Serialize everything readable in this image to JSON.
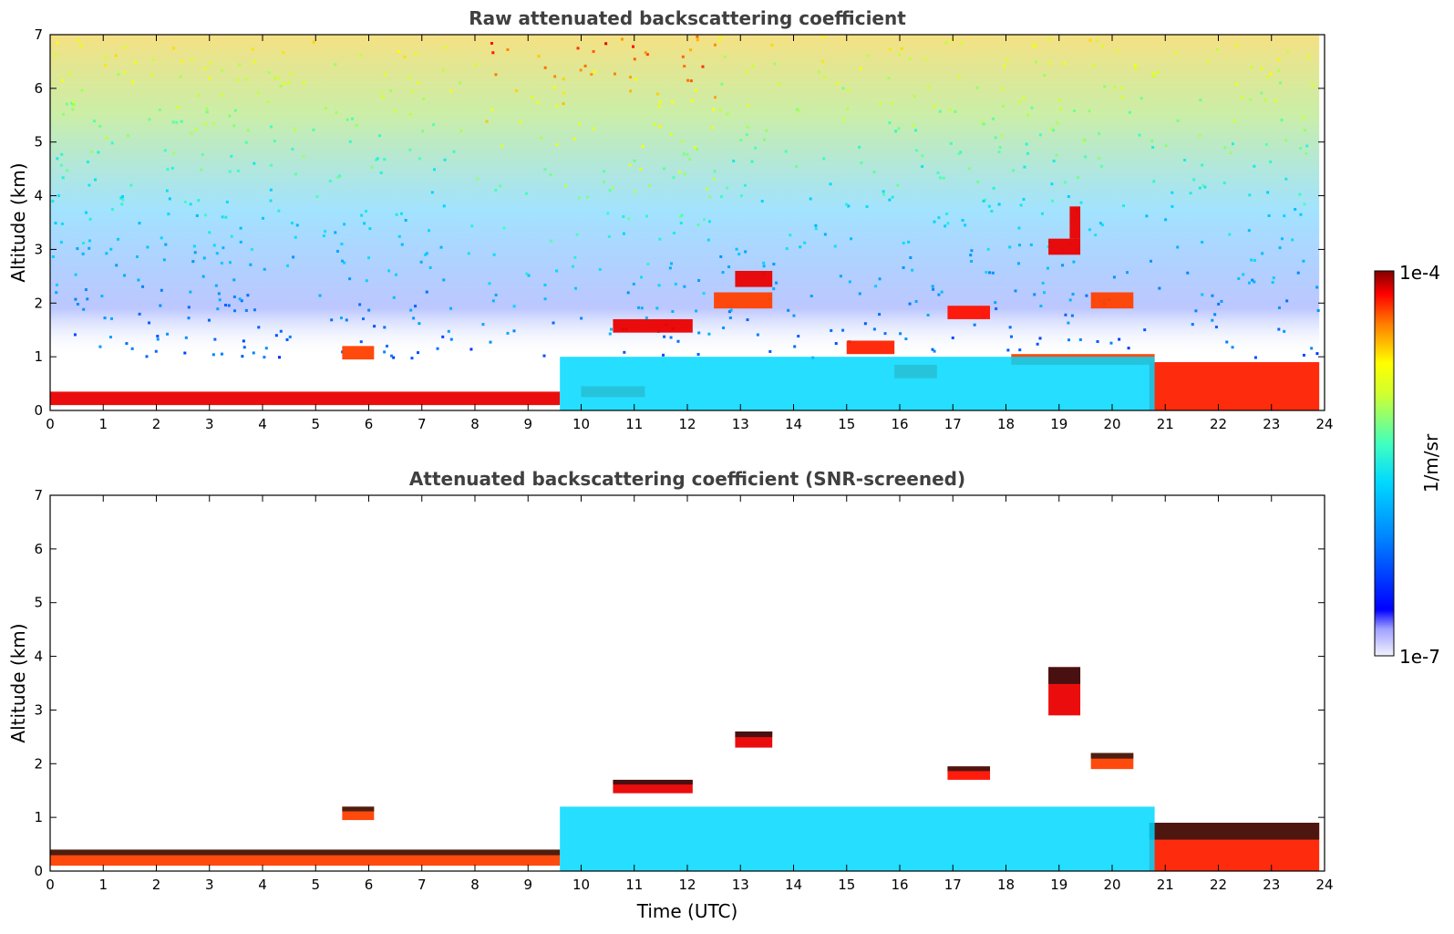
{
  "chart_data": [
    {
      "type": "heatmap",
      "title": "Raw attenuated backscattering coefficient",
      "xlabel": "",
      "ylabel": "Altitude (km)",
      "xlim": [
        0,
        24
      ],
      "ylim": [
        0,
        7
      ],
      "x_ticks": [
        "0",
        "1",
        "2",
        "3",
        "4",
        "5",
        "6",
        "7",
        "8",
        "9",
        "10",
        "11",
        "12",
        "13",
        "14",
        "15",
        "16",
        "17",
        "18",
        "19",
        "20",
        "21",
        "22",
        "23",
        "24"
      ],
      "y_ticks": [
        "0",
        "1",
        "2",
        "3",
        "4",
        "5",
        "6",
        "7"
      ],
      "screened": false,
      "layers": [
        {
          "x_start": 0,
          "x_end": 9.6,
          "y_bottom": 0.1,
          "y_top": 0.35,
          "level": 0.95
        },
        {
          "x_start": 10,
          "x_end": 11.2,
          "y_bottom": 0.25,
          "y_top": 0.45,
          "level": 0.9
        },
        {
          "x_start": 10.6,
          "x_end": 12.1,
          "y_bottom": 1.45,
          "y_top": 1.7,
          "level": 0.95
        },
        {
          "x_start": 12.9,
          "x_end": 13.6,
          "y_bottom": 2.3,
          "y_top": 2.6,
          "level": 0.95
        },
        {
          "x_start": 12.5,
          "x_end": 13.6,
          "y_bottom": 1.9,
          "y_top": 2.2,
          "level": 0.9
        },
        {
          "x_start": 15,
          "x_end": 15.9,
          "y_bottom": 1.05,
          "y_top": 1.3,
          "level": 0.92
        },
        {
          "x_start": 15.9,
          "x_end": 16.7,
          "y_bottom": 0.6,
          "y_top": 0.85,
          "level": 0.9
        },
        {
          "x_start": 16.9,
          "x_end": 17.7,
          "y_bottom": 1.7,
          "y_top": 1.95,
          "level": 0.93
        },
        {
          "x_start": 18.8,
          "x_end": 19.4,
          "y_bottom": 2.9,
          "y_top": 3.2,
          "level": 0.95
        },
        {
          "x_start": 19.2,
          "x_end": 19.4,
          "y_bottom": 3.2,
          "y_top": 3.8,
          "level": 0.95
        },
        {
          "x_start": 19.6,
          "x_end": 20.4,
          "y_bottom": 1.9,
          "y_top": 2.2,
          "level": 0.9
        },
        {
          "x_start": 18.1,
          "x_end": 20.8,
          "y_bottom": 0.85,
          "y_top": 1.05,
          "level": 0.9
        },
        {
          "x_start": 20.7,
          "x_end": 23.9,
          "y_bottom": 0.0,
          "y_top": 0.9,
          "level": 0.92
        },
        {
          "x_start": 5.5,
          "x_end": 6.1,
          "y_bottom": 0.95,
          "y_top": 1.2,
          "level": 0.9
        },
        {
          "x_start": 9.6,
          "x_end": 20.8,
          "y_bottom": 0.0,
          "y_top": 1.0,
          "level": 0.45
        }
      ]
    },
    {
      "type": "heatmap",
      "title": "Attenuated backscattering coefficient (SNR-screened)",
      "xlabel": "Time (UTC)",
      "ylabel": "Altitude (km)",
      "xlim": [
        0,
        24
      ],
      "ylim": [
        0,
        7
      ],
      "x_ticks": [
        "0",
        "1",
        "2",
        "3",
        "4",
        "5",
        "6",
        "7",
        "8",
        "9",
        "10",
        "11",
        "12",
        "13",
        "14",
        "15",
        "16",
        "17",
        "18",
        "19",
        "20",
        "21",
        "22",
        "23",
        "24"
      ],
      "y_ticks": [
        "0",
        "1",
        "2",
        "3",
        "4",
        "5",
        "6",
        "7"
      ],
      "screened": true,
      "layers": [
        {
          "x_start": 0,
          "x_end": 9.6,
          "y_bottom": 0.1,
          "y_top": 0.4,
          "level": 0.9
        },
        {
          "x_start": 10.6,
          "x_end": 12.1,
          "y_bottom": 1.45,
          "y_top": 1.7,
          "level": 0.95
        },
        {
          "x_start": 12.9,
          "x_end": 13.6,
          "y_bottom": 2.3,
          "y_top": 2.6,
          "level": 0.95
        },
        {
          "x_start": 16.9,
          "x_end": 17.7,
          "y_bottom": 1.7,
          "y_top": 1.95,
          "level": 0.93
        },
        {
          "x_start": 18.8,
          "x_end": 19.4,
          "y_bottom": 2.9,
          "y_top": 3.8,
          "level": 0.95
        },
        {
          "x_start": 19.6,
          "x_end": 20.4,
          "y_bottom": 1.9,
          "y_top": 2.2,
          "level": 0.9
        },
        {
          "x_start": 20.7,
          "x_end": 23.9,
          "y_bottom": 0.0,
          "y_top": 0.9,
          "level": 0.92
        },
        {
          "x_start": 5.5,
          "x_end": 6.1,
          "y_bottom": 0.95,
          "y_top": 1.2,
          "level": 0.9
        },
        {
          "x_start": 9.6,
          "x_end": 20.8,
          "y_bottom": 0.0,
          "y_top": 1.2,
          "level": 0.45
        }
      ]
    }
  ],
  "colorbar": {
    "label": "1/m/sr",
    "max_label": "1e-4",
    "min_label": "1e-7",
    "colors": [
      "#7f0000",
      "#ff0000",
      "#ff8000",
      "#ffff00",
      "#80ff80",
      "#00ffff",
      "#0080ff",
      "#0000ff",
      "#ffffff"
    ]
  }
}
